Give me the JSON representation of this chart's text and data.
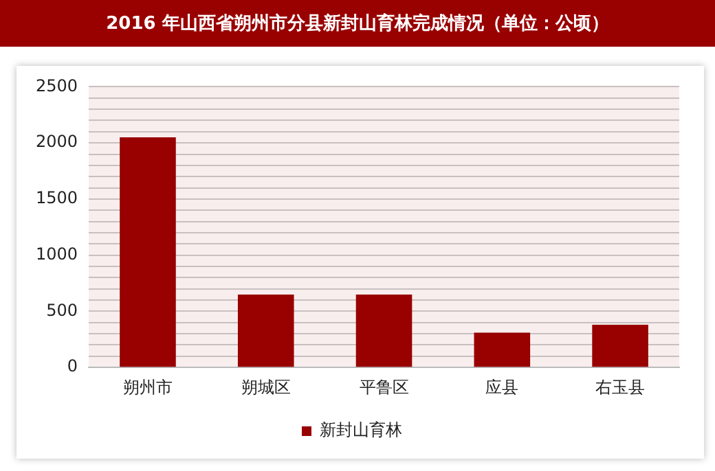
{
  "chart_data": {
    "type": "bar",
    "title": "2016 年山西省朔州市分县新封山育林完成情况（单位：公顷）",
    "categories": [
      "朔州市",
      "朔城区",
      "平鲁区",
      "应县",
      "右玉县"
    ],
    "series": [
      {
        "name": "新封山育林",
        "color": "#990000",
        "values": [
          2050,
          650,
          650,
          310,
          380
        ]
      }
    ],
    "ylim": [
      0,
      2500
    ],
    "yticks": [
      0,
      {
        "value": 100,
        "label": null
      },
      {
        "value": 200,
        "label": null
      },
      {
        "value": 300,
        "label": null
      },
      {
        "value": 400,
        "label": null
      },
      500,
      {
        "value": 600,
        "label": null
      },
      {
        "value": 700,
        "label": null
      },
      {
        "value": 800,
        "label": null
      },
      {
        "value": 900,
        "label": null
      },
      1000,
      {
        "value": 1100,
        "label": null
      },
      {
        "value": 1200,
        "label": null
      },
      {
        "value": 1300,
        "label": null
      },
      {
        "value": 1400,
        "label": null
      },
      1500,
      {
        "value": 1600,
        "label": null
      },
      {
        "value": 1700,
        "label": null
      },
      {
        "value": 1800,
        "label": null
      },
      {
        "value": 1900,
        "label": null
      },
      2000,
      {
        "value": 2100,
        "label": null
      },
      {
        "value": 2200,
        "label": null
      },
      {
        "value": 2300,
        "label": null
      },
      {
        "value": 2400,
        "label": null
      },
      2500
    ],
    "grid": "y",
    "legend": "bottom"
  }
}
